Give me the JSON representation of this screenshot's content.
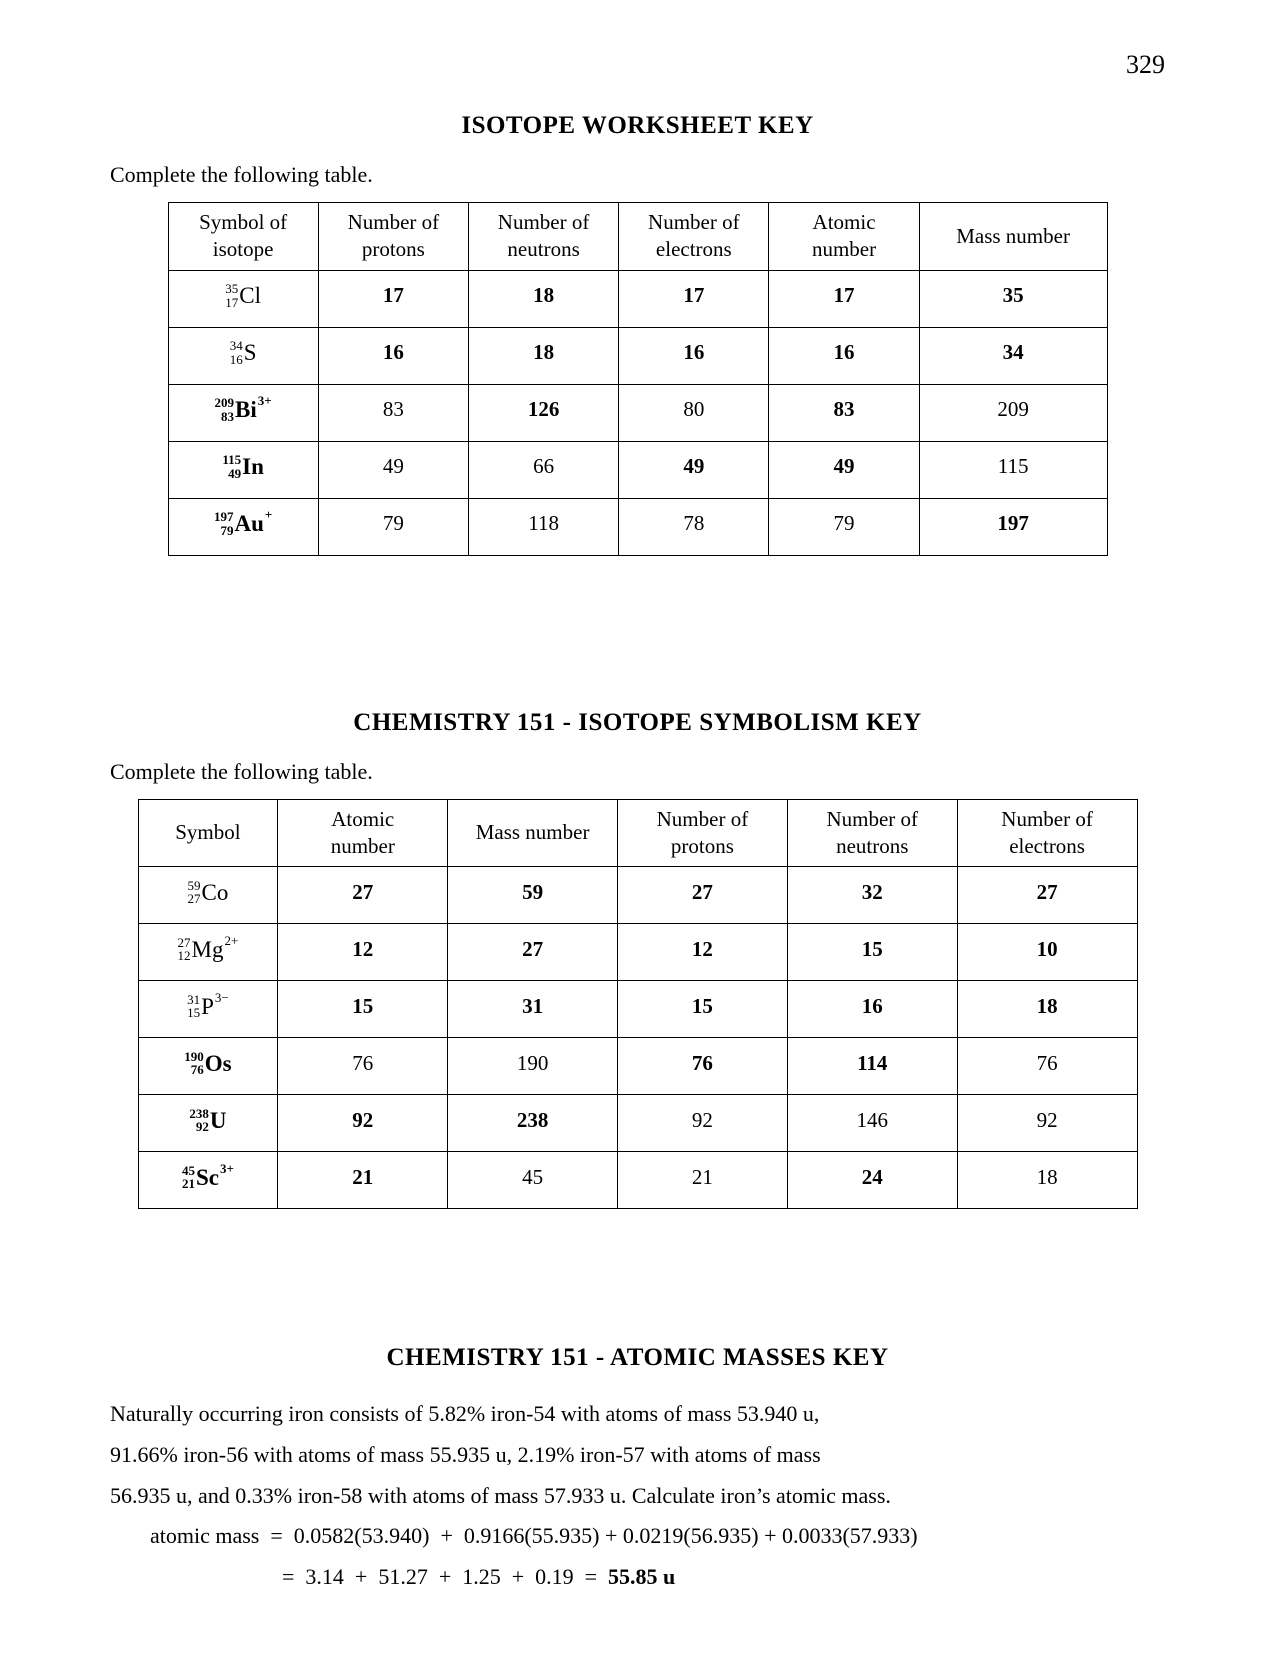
{
  "page_number": "329",
  "colors": {
    "text": "#000000",
    "background": "#ffffff",
    "border": "#000000"
  },
  "typography": {
    "body_font": "Georgia, 'Times New Roman', serif",
    "title_fontsize_pt": 19,
    "body_fontsize_pt": 16,
    "isotope_prefix_fontsize_pt": 10,
    "isotope_element_fontsize_pt": 17
  },
  "section1": {
    "title": "ISOTOPE WORKSHEET KEY",
    "instruction": "Complete the following table.",
    "table": {
      "type": "table",
      "column_widths_pct": [
        16,
        16,
        16,
        16,
        16,
        20
      ],
      "columns": [
        "Symbol of isotope",
        "Number of protons",
        "Number of neutrons",
        "Number of electrons",
        "Atomic number",
        "Mass number"
      ],
      "rows": [
        {
          "symbol": {
            "mass": "35",
            "atno": "17",
            "elem": "Cl",
            "charge": "",
            "bold": false
          },
          "cells": [
            {
              "v": "17",
              "bold": true
            },
            {
              "v": "18",
              "bold": true
            },
            {
              "v": "17",
              "bold": true
            },
            {
              "v": "17",
              "bold": true
            },
            {
              "v": "35",
              "bold": true
            }
          ]
        },
        {
          "symbol": {
            "mass": "34",
            "atno": "16",
            "elem": "S",
            "charge": "",
            "bold": false
          },
          "cells": [
            {
              "v": "16",
              "bold": true
            },
            {
              "v": "18",
              "bold": true
            },
            {
              "v": "16",
              "bold": true
            },
            {
              "v": "16",
              "bold": true
            },
            {
              "v": "34",
              "bold": true
            }
          ]
        },
        {
          "symbol": {
            "mass": "209",
            "atno": "83",
            "elem": "Bi",
            "charge": "3+",
            "bold": true
          },
          "cells": [
            {
              "v": "83",
              "bold": false
            },
            {
              "v": "126",
              "bold": true
            },
            {
              "v": "80",
              "bold": false
            },
            {
              "v": "83",
              "bold": true
            },
            {
              "v": "209",
              "bold": false
            }
          ]
        },
        {
          "symbol": {
            "mass": "115",
            "atno": "49",
            "elem": "In",
            "charge": "",
            "bold": true
          },
          "cells": [
            {
              "v": "49",
              "bold": false
            },
            {
              "v": "66",
              "bold": false
            },
            {
              "v": "49",
              "bold": true
            },
            {
              "v": "49",
              "bold": true
            },
            {
              "v": "115",
              "bold": false
            }
          ]
        },
        {
          "symbol": {
            "mass": "197",
            "atno": "79",
            "elem": "Au",
            "charge": "+",
            "bold": true
          },
          "cells": [
            {
              "v": "79",
              "bold": false
            },
            {
              "v": "118",
              "bold": false
            },
            {
              "v": "78",
              "bold": false
            },
            {
              "v": "79",
              "bold": false
            },
            {
              "v": "197",
              "bold": true
            }
          ]
        }
      ]
    }
  },
  "section2": {
    "title": "CHEMISTRY 151 - ISOTOPE SYMBOLISM KEY",
    "instruction": "Complete the following table.",
    "table": {
      "type": "table",
      "column_widths_pct": [
        14,
        17,
        17,
        17,
        17,
        18
      ],
      "columns": [
        "Symbol",
        "Atomic number",
        "Mass number",
        "Number of protons",
        "Number of neutrons",
        "Number of electrons"
      ],
      "rows": [
        {
          "symbol": {
            "mass": "59",
            "atno": "27",
            "elem": "Co",
            "charge": "",
            "bold": false
          },
          "cells": [
            {
              "v": "27",
              "bold": true
            },
            {
              "v": "59",
              "bold": true
            },
            {
              "v": "27",
              "bold": true
            },
            {
              "v": "32",
              "bold": true
            },
            {
              "v": "27",
              "bold": true
            }
          ]
        },
        {
          "symbol": {
            "mass": "27",
            "atno": "12",
            "elem": "Mg",
            "charge": "2+",
            "bold": false
          },
          "cells": [
            {
              "v": "12",
              "bold": true
            },
            {
              "v": "27",
              "bold": true
            },
            {
              "v": "12",
              "bold": true
            },
            {
              "v": "15",
              "bold": true
            },
            {
              "v": "10",
              "bold": true
            }
          ]
        },
        {
          "symbol": {
            "mass": "31",
            "atno": "15",
            "elem": "P",
            "charge": "3−",
            "bold": false
          },
          "cells": [
            {
              "v": "15",
              "bold": true
            },
            {
              "v": "31",
              "bold": true
            },
            {
              "v": "15",
              "bold": true
            },
            {
              "v": "16",
              "bold": true
            },
            {
              "v": "18",
              "bold": true
            }
          ]
        },
        {
          "symbol": {
            "mass": "190",
            "atno": "76",
            "elem": "Os",
            "charge": "",
            "bold": true
          },
          "cells": [
            {
              "v": "76",
              "bold": false
            },
            {
              "v": "190",
              "bold": false
            },
            {
              "v": "76",
              "bold": true
            },
            {
              "v": "114",
              "bold": true
            },
            {
              "v": "76",
              "bold": false
            }
          ]
        },
        {
          "symbol": {
            "mass": "238",
            "atno": "92",
            "elem": "U",
            "charge": "",
            "bold": true
          },
          "cells": [
            {
              "v": "92",
              "bold": true
            },
            {
              "v": "238",
              "bold": true
            },
            {
              "v": "92",
              "bold": false
            },
            {
              "v": "146",
              "bold": false
            },
            {
              "v": "92",
              "bold": false
            }
          ]
        },
        {
          "symbol": {
            "mass": "45",
            "atno": "21",
            "elem": "Sc",
            "charge": "3+",
            "bold": true
          },
          "cells": [
            {
              "v": "21",
              "bold": true
            },
            {
              "v": "45",
              "bold": false
            },
            {
              "v": "21",
              "bold": false
            },
            {
              "v": "24",
              "bold": true
            },
            {
              "v": "18",
              "bold": false
            }
          ]
        }
      ]
    }
  },
  "section3": {
    "title": "CHEMISTRY 151 - ATOMIC MASSES KEY",
    "problem_lines": [
      "Naturally occurring iron consists of 5.82% iron-54 with atoms of mass 53.940 u,",
      "91.66% iron-56 with atoms of mass 55.935 u, 2.19% iron-57 with atoms of mass",
      "56.935 u, and 0.33% iron-58 with atoms of mass 57.933 u. Calculate iron’s atomic mass."
    ],
    "calc_line1_label": "atomic mass",
    "calc_line1_rhs": "0.0582(53.940)  +  0.9166(55.935) + 0.0219(56.935) + 0.0033(57.933)",
    "calc_line2_prefix": "=  3.14  +  51.27  +  1.25  +  0.19  =  ",
    "calc_line2_answer": "55.85 u"
  }
}
